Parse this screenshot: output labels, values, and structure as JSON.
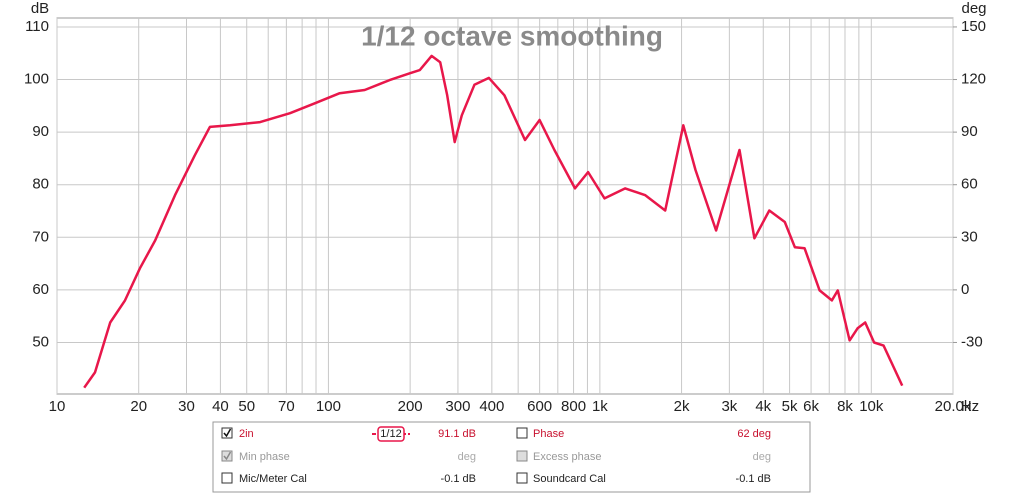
{
  "chart_data": {
    "type": "line",
    "title": "1/12 octave smoothing",
    "y_label": "dB",
    "y2_label": "deg",
    "x_label": "Hz",
    "log_x": true,
    "grid": true,
    "x": [
      12.6,
      13.8,
      15.7,
      17.8,
      20.2,
      23,
      27.2,
      32.2,
      36.6,
      43.4,
      56,
      72.2,
      89.3,
      110,
      136,
      168,
      200,
      217,
      240,
      258,
      274,
      292,
      310,
      345,
      390,
      445,
      530,
      600,
      680,
      810,
      905,
      1040,
      1240,
      1470,
      1740,
      2030,
      2250,
      2680,
      3270,
      3710,
      4210,
      4800,
      5230,
      5680,
      6450,
      7160,
      7530,
      8320,
      8900,
      9500,
      10240,
      11100,
      13000
    ],
    "series": [
      {
        "name": "2in",
        "color": "#e8174a",
        "values": [
          41.4,
          44.3,
          53.8,
          58,
          64.1,
          69.4,
          78,
          85.6,
          91,
          91.3,
          91.9,
          93.6,
          95.5,
          97.4,
          98,
          99.9,
          101.2,
          101.8,
          104.5,
          103.3,
          97,
          88.1,
          93.2,
          99,
          100.3,
          97,
          88.5,
          92.3,
          86.6,
          79.3,
          82.4,
          77.4,
          79.3,
          78,
          75.1,
          91.3,
          82.8,
          71.3,
          86.6,
          69.8,
          75.1,
          72.9,
          68.1,
          67.9,
          59.9,
          58,
          59.9,
          50.4,
          52.7,
          53.8,
          50,
          49.4,
          41.8
        ]
      }
    ],
    "xlim": [
      10,
      20000
    ],
    "ylim": [
      40.2,
      111.7
    ],
    "y2lim": [
      -59.4,
      155.1
    ],
    "xticks": [
      10,
      20,
      30,
      40,
      50,
      70,
      100,
      200,
      300,
      400,
      600,
      800,
      {
        "value": 1000,
        "label": "1k"
      },
      {
        "value": 2000,
        "label": "2k"
      },
      {
        "value": 3000,
        "label": "3k"
      },
      {
        "value": 4000,
        "label": "4k"
      },
      {
        "value": 5000,
        "label": "5k"
      },
      {
        "value": 6000,
        "label": "6k"
      },
      {
        "value": 8000,
        "label": "8k"
      },
      {
        "value": 10000,
        "label": "10k"
      },
      {
        "value": 20000,
        "label": "20.0k"
      }
    ],
    "xminorticks": [
      60,
      80,
      90,
      500,
      700,
      900,
      7000,
      9000
    ],
    "yticks": [
      50,
      60,
      70,
      80,
      90,
      100,
      110
    ],
    "y2ticks": [
      -30,
      0,
      30,
      60,
      90,
      120,
      150
    ]
  },
  "legend_panel": {
    "smoothing": "1/12",
    "spl_value": "91.1 dB",
    "phase": "Phase",
    "phase_value": "62 deg",
    "min_phase": "Min phase",
    "min_phase_value": "deg",
    "excess_phase": "Excess phase",
    "excess_phase_value": "deg",
    "mic_cal": "Mic/Meter Cal",
    "mic_cal_value": "-0.1 dB",
    "soundcard_cal": "Soundcard Cal",
    "soundcard_cal_value": "-0.1 dB"
  }
}
